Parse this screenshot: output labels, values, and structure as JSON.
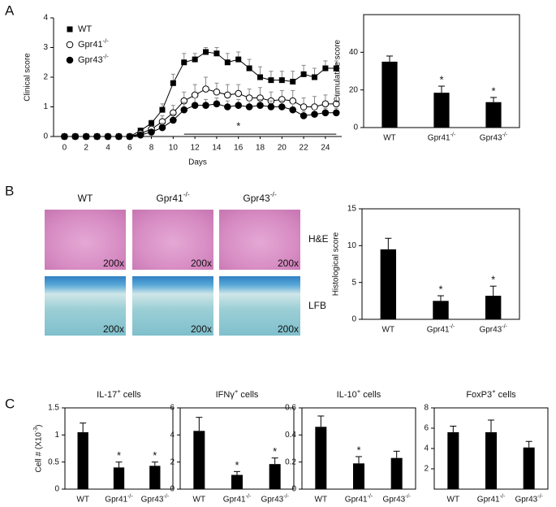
{
  "panels": [
    "A",
    "B",
    "C"
  ],
  "histology": {
    "columns": [
      "WT",
      "Gpr41-/-",
      "Gpr43-/-"
    ],
    "rows": [
      "H&E",
      "LFB"
    ],
    "magnification": "200x"
  },
  "chart_data": [
    {
      "type": "line",
      "x_label": "Days",
      "y_label": "Clinical score",
      "x": [
        0,
        1,
        2,
        3,
        4,
        5,
        6,
        7,
        8,
        9,
        10,
        11,
        12,
        13,
        14,
        15,
        16,
        17,
        18,
        19,
        20,
        21,
        22,
        23,
        24,
        25
      ],
      "xlim": [
        -1,
        25.5
      ],
      "xticks": [
        0,
        2,
        4,
        6,
        8,
        10,
        12,
        14,
        16,
        18,
        20,
        22,
        24
      ],
      "ylim": [
        0,
        4
      ],
      "yticks": [
        0,
        1,
        2,
        3,
        4
      ],
      "legend": "upper left",
      "series": [
        {
          "name": "WT",
          "color": "#000000",
          "marker": "square",
          "values": [
            0,
            0,
            0,
            0,
            0,
            0,
            0,
            0.2,
            0.45,
            0.9,
            1.8,
            2.5,
            2.6,
            2.85,
            2.8,
            2.5,
            2.6,
            2.3,
            2.0,
            1.9,
            1.9,
            1.85,
            2.1,
            2.0,
            2.3,
            2.3
          ],
          "errors": [
            0,
            0,
            0,
            0,
            0,
            0,
            0,
            0.05,
            0.1,
            0.2,
            0.3,
            0.3,
            0.2,
            0.15,
            0.2,
            0.3,
            0.25,
            0.3,
            0.35,
            0.3,
            0.3,
            0.35,
            0.3,
            0.3,
            0.25,
            0.25
          ]
        },
        {
          "name": "Gpr41-/-",
          "color": "#000000",
          "marker": "open-circle",
          "values": [
            0,
            0,
            0,
            0,
            0,
            0,
            0,
            0.1,
            0.25,
            0.5,
            0.8,
            1.2,
            1.4,
            1.6,
            1.5,
            1.4,
            1.45,
            1.3,
            1.3,
            1.2,
            1.25,
            1.2,
            1.0,
            1.0,
            1.1,
            1.1
          ],
          "errors": [
            0,
            0,
            0,
            0,
            0,
            0,
            0,
            0.05,
            0.1,
            0.2,
            0.25,
            0.3,
            0.35,
            0.4,
            0.3,
            0.35,
            0.3,
            0.3,
            0.35,
            0.3,
            0.3,
            0.35,
            0.3,
            0.35,
            0.3,
            0.3
          ]
        },
        {
          "name": "Gpr43-/-",
          "color": "#000000",
          "marker": "circle",
          "values": [
            0,
            0,
            0,
            0,
            0,
            0,
            0,
            0.05,
            0.15,
            0.3,
            0.55,
            0.9,
            1.05,
            1.05,
            1.1,
            1.0,
            1.05,
            1.0,
            1.05,
            1.0,
            1.0,
            0.9,
            0.7,
            0.75,
            0.8,
            0.8
          ],
          "errors": [
            0,
            0,
            0,
            0,
            0,
            0,
            0,
            0.03,
            0.08,
            0.15,
            0.2,
            0.25,
            0.25,
            0.2,
            0.2,
            0.2,
            0.2,
            0.2,
            0.2,
            0.2,
            0.2,
            0.2,
            0.15,
            0.15,
            0.15,
            0.15
          ]
        }
      ],
      "significance_bar": {
        "x": [
          11,
          25
        ],
        "y": 0.08,
        "label": "*",
        "label_x": 16
      }
    },
    {
      "type": "bar",
      "y_label": "Cumulative score",
      "categories": [
        "WT",
        "Gpr41-/-",
        "Gpr43-/-"
      ],
      "values": [
        35,
        18.5,
        13.5
      ],
      "errors": [
        3,
        3.5,
        2.5
      ],
      "significance": [
        null,
        "*",
        "*"
      ],
      "color": "#000000",
      "ylim": [
        0,
        60
      ],
      "yticks": [
        0,
        20,
        40
      ]
    },
    {
      "type": "bar",
      "y_label": "Histological score",
      "categories": [
        "WT",
        "Gpr41-/-",
        "Gpr43-/-"
      ],
      "values": [
        9.5,
        2.5,
        3.2
      ],
      "errors": [
        1.5,
        0.7,
        1.3
      ],
      "significance": [
        null,
        "*",
        "*"
      ],
      "color": "#000000",
      "ylim": [
        0,
        15
      ],
      "yticks": [
        0,
        5,
        10,
        15
      ]
    },
    {
      "type": "bar",
      "title": "IL-17+ cells",
      "y_label": "Cell # (X10-3)",
      "categories": [
        "WT",
        "Gpr41-/-",
        "Gpr43-/-"
      ],
      "values": [
        1.05,
        0.4,
        0.43
      ],
      "errors": [
        0.17,
        0.1,
        0.07
      ],
      "significance": [
        null,
        "*",
        "*"
      ],
      "color": "#000000",
      "ylim": [
        0,
        1.5
      ],
      "yticks": [
        0,
        0.5,
        1,
        1.5
      ]
    },
    {
      "type": "bar",
      "title": "IFNγ+ cells",
      "categories": [
        "WT",
        "Gpr41-/-",
        "Gpr43-/-"
      ],
      "values": [
        4.3,
        1.05,
        1.85
      ],
      "errors": [
        1.0,
        0.25,
        0.45
      ],
      "significance": [
        null,
        "*",
        "*"
      ],
      "color": "#000000",
      "ylim": [
        0,
        6
      ],
      "yticks": [
        0,
        2,
        4,
        6
      ]
    },
    {
      "type": "bar",
      "title": "IL-10+ cells",
      "categories": [
        "WT",
        "Gpr41-/-",
        "Gpr43-/-"
      ],
      "values": [
        0.46,
        0.19,
        0.23
      ],
      "errors": [
        0.08,
        0.05,
        0.05
      ],
      "significance": [
        null,
        "*",
        null
      ],
      "color": "#000000",
      "ylim": [
        0,
        0.6
      ],
      "yticks": [
        0,
        0.2,
        0.4,
        0.6
      ]
    },
    {
      "type": "bar",
      "title": "FoxP3+ cells",
      "categories": [
        "WT",
        "Gpr41-/-",
        "Gpr43-/-"
      ],
      "values": [
        5.6,
        5.6,
        4.1
      ],
      "errors": [
        0.6,
        1.2,
        0.6
      ],
      "significance": [
        null,
        null,
        null
      ],
      "color": "#000000",
      "ylim": [
        0,
        8
      ],
      "yticks": [
        2,
        4,
        6,
        8
      ]
    }
  ]
}
